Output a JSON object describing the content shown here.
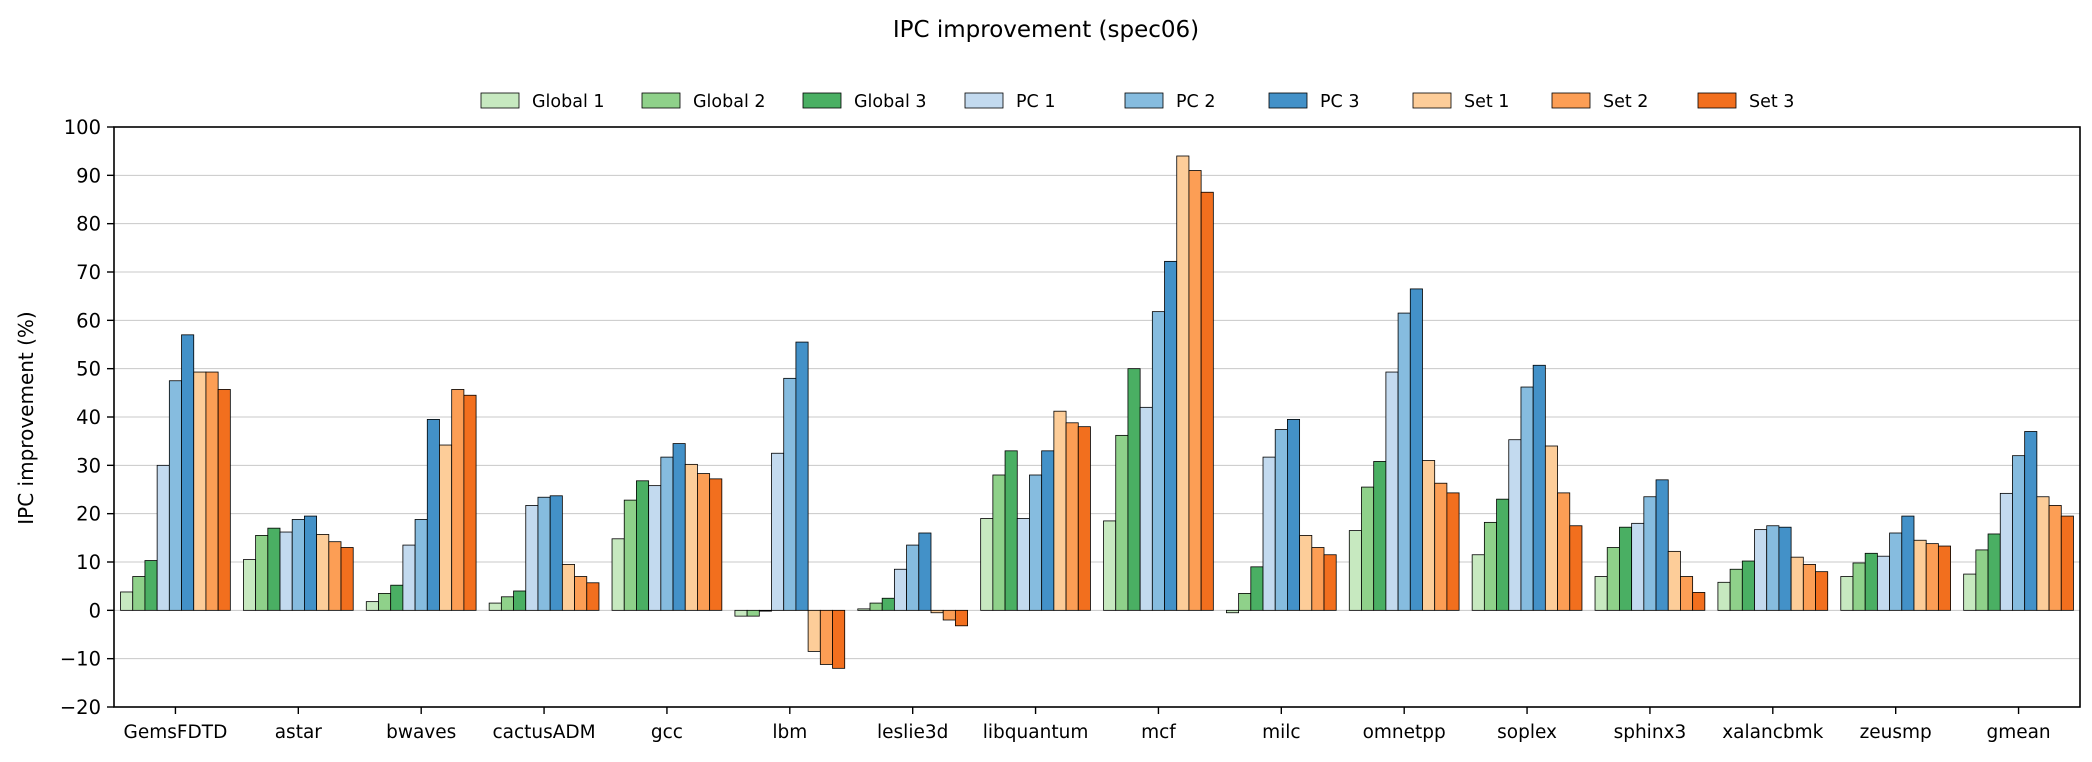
{
  "chart_data": {
    "type": "bar",
    "title": "IPC improvement (spec06)",
    "xlabel": "",
    "ylabel": "IPC improvement (%)",
    "ylim": [
      -20,
      100
    ],
    "yticks": [
      -20,
      -10,
      0,
      10,
      20,
      30,
      40,
      50,
      60,
      70,
      80,
      90,
      100
    ],
    "grid": "horizontal",
    "legend_position": "top-center",
    "categories": [
      "GemsFDTD",
      "astar",
      "bwaves",
      "cactusADM",
      "gcc",
      "lbm",
      "leslie3d",
      "libquantum",
      "mcf",
      "milc",
      "omnetpp",
      "soplex",
      "sphinx3",
      "xalancbmk",
      "zeusmp",
      "gmean"
    ],
    "series": [
      {
        "name": "Global 1",
        "color": "#c7e9c0",
        "values": [
          3.8,
          10.5,
          1.8,
          1.5,
          14.8,
          -1.2,
          0.3,
          19.0,
          18.5,
          -0.5,
          16.5,
          11.5,
          7.0,
          5.8,
          7.0,
          7.5
        ]
      },
      {
        "name": "Global 2",
        "color": "#8fd18a",
        "values": [
          7.0,
          15.5,
          3.5,
          2.8,
          22.8,
          -1.2,
          1.5,
          28.0,
          36.2,
          3.5,
          25.5,
          18.2,
          13.0,
          8.5,
          9.8,
          12.5
        ]
      },
      {
        "name": "Global 3",
        "color": "#4aaf63",
        "values": [
          10.3,
          17.0,
          5.2,
          4.0,
          26.8,
          0.0,
          2.5,
          33.0,
          50.0,
          9.0,
          30.8,
          23.0,
          17.2,
          10.2,
          11.8,
          15.8
        ]
      },
      {
        "name": "PC 1",
        "color": "#c3daef",
        "values": [
          30.0,
          16.2,
          13.5,
          21.7,
          25.8,
          32.5,
          8.5,
          19.0,
          42.0,
          31.7,
          49.3,
          35.3,
          18.0,
          16.7,
          11.2,
          24.2
        ]
      },
      {
        "name": "PC 2",
        "color": "#86bcdf",
        "values": [
          47.5,
          18.8,
          18.8,
          23.4,
          31.7,
          48.0,
          13.5,
          28.0,
          61.8,
          37.4,
          61.5,
          46.2,
          23.5,
          17.5,
          16.0,
          32.0
        ]
      },
      {
        "name": "PC 3",
        "color": "#4391c8",
        "values": [
          57.0,
          19.5,
          39.5,
          23.7,
          34.5,
          55.5,
          16.0,
          33.0,
          72.2,
          39.5,
          66.5,
          50.7,
          27.0,
          17.2,
          19.5,
          37.0
        ]
      },
      {
        "name": "Set 1",
        "color": "#fdcd99",
        "values": [
          49.3,
          15.7,
          34.2,
          9.5,
          30.2,
          -8.5,
          -0.5,
          41.2,
          94.0,
          15.5,
          31.0,
          34.0,
          12.2,
          11.0,
          14.5,
          23.5
        ]
      },
      {
        "name": "Set 2",
        "color": "#fc9e55",
        "values": [
          49.3,
          14.2,
          45.7,
          7.0,
          28.3,
          -11.2,
          -2.0,
          38.8,
          91.0,
          13.0,
          26.3,
          24.3,
          7.0,
          9.5,
          13.8,
          21.7
        ]
      },
      {
        "name": "Set 3",
        "color": "#f26f1e",
        "values": [
          45.7,
          13.0,
          44.5,
          5.7,
          27.2,
          -12.0,
          -3.2,
          38.0,
          86.5,
          11.5,
          24.3,
          17.5,
          3.7,
          8.0,
          13.3,
          19.5
        ]
      }
    ]
  }
}
